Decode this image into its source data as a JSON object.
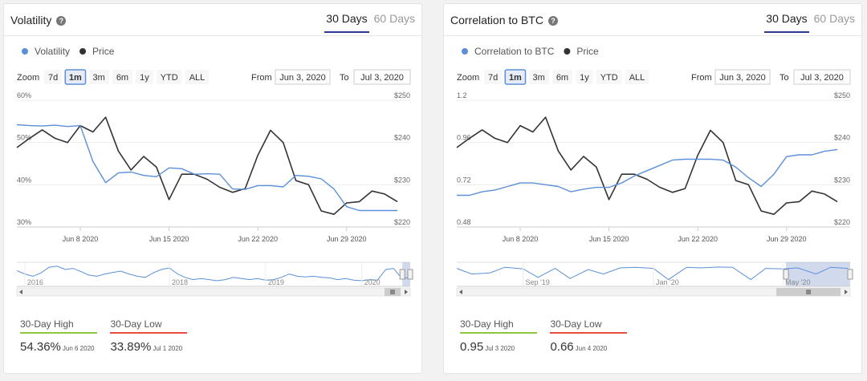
{
  "tab_labels": [
    "30 Days",
    "60 Days"
  ],
  "zoom_label": "Zoom",
  "zoom_buttons": [
    "7d",
    "1m",
    "3m",
    "6m",
    "1y",
    "YTD",
    "ALL"
  ],
  "from_label": "From",
  "to_label": "To",
  "colors": {
    "primary": "#5b8fd9",
    "secondary": "#333333",
    "high": "#8dc63f",
    "low": "#e74c3c",
    "tab_active": "#2e3a8c"
  },
  "icons": [
    "help-icon",
    "scroll-left-icon",
    "scroll-right-icon",
    "scrollbar-grip-icon",
    "navigator-handle-icon"
  ],
  "cards": [
    {
      "title": "Volatility",
      "active_tab": 0,
      "from_value": "Jun 3, 2020",
      "to_value": "Jul 3, 2020",
      "active_zoom": 1,
      "stats": {
        "high_label": "30-Day High",
        "high_value": "54.36%",
        "high_date": "Jun 6 2020",
        "low_label": "30-Day Low",
        "low_value": "33.89%",
        "low_date": "Jul 1 2020"
      },
      "chart_data": {
        "type": "line",
        "legend": "top-left",
        "xlim": [
          "2020-06-03",
          "2020-07-03"
        ],
        "x_ticks": [
          "Jun 8 2020",
          "Jun 15 2020",
          "Jun 22 2020",
          "Jun 29 2020"
        ],
        "x_tick_dates": [
          "2020-06-08",
          "2020-06-15",
          "2020-06-22",
          "2020-06-29"
        ],
        "y_left": {
          "ticks": [
            "60%",
            "50%",
            "40%",
            "30%"
          ],
          "values": [
            60,
            50,
            40,
            30
          ],
          "range": [
            30,
            60
          ]
        },
        "y_right": {
          "ticks": [
            "$250",
            "$240",
            "$230",
            "$220"
          ],
          "values": [
            250,
            240,
            230,
            220
          ],
          "range": [
            220,
            250
          ]
        },
        "series": [
          {
            "name": "Volatility",
            "axis": "left",
            "x": [
              "2020-06-03",
              "2020-06-04",
              "2020-06-05",
              "2020-06-06",
              "2020-06-07",
              "2020-06-08",
              "2020-06-09",
              "2020-06-10",
              "2020-06-11",
              "2020-06-12",
              "2020-06-13",
              "2020-06-14",
              "2020-06-15",
              "2020-06-16",
              "2020-06-17",
              "2020-06-18",
              "2020-06-19",
              "2020-06-20",
              "2020-06-21",
              "2020-06-22",
              "2020-06-23",
              "2020-06-24",
              "2020-06-25",
              "2020-06-26",
              "2020-06-27",
              "2020-06-28",
              "2020-06-29",
              "2020-06-30",
              "2020-07-01",
              "2020-07-02",
              "2020-07-03"
            ],
            "values": [
              54.2,
              54.0,
              53.9,
              54.1,
              53.8,
              54.0,
              45.5,
              40.5,
              42.8,
              43.0,
              42.2,
              41.9,
              44.0,
              43.8,
              42.5,
              42.6,
              42.5,
              39.0,
              38.9,
              39.8,
              39.8,
              39.5,
              42.2,
              42.0,
              41.4,
              39.0,
              34.8,
              33.9,
              33.9,
              33.9,
              33.9
            ]
          },
          {
            "name": "Price",
            "axis": "right",
            "x": [
              "2020-06-03",
              "2020-06-04",
              "2020-06-05",
              "2020-06-06",
              "2020-06-07",
              "2020-06-08",
              "2020-06-09",
              "2020-06-10",
              "2020-06-11",
              "2020-06-12",
              "2020-06-13",
              "2020-06-14",
              "2020-06-15",
              "2020-06-16",
              "2020-06-17",
              "2020-06-18",
              "2020-06-19",
              "2020-06-20",
              "2020-06-21",
              "2020-06-22",
              "2020-06-23",
              "2020-06-24",
              "2020-06-25",
              "2020-06-26",
              "2020-06-27",
              "2020-06-28",
              "2020-06-29",
              "2020-06-30",
              "2020-07-01",
              "2020-07-02",
              "2020-07-03"
            ],
            "values": [
              238.8,
              241.0,
              243.0,
              241.0,
              240.0,
              244.0,
              242.5,
              246.0,
              238.0,
              233.5,
              236.7,
              234.2,
              226.5,
              232.5,
              232.5,
              231.3,
              229.4,
              228.2,
              229.1,
              237.0,
              242.9,
              240.0,
              231.0,
              230.0,
              223.8,
              223.0,
              225.7,
              226.0,
              228.5,
              227.8,
              226.0
            ]
          }
        ]
      },
      "navigator": {
        "labels": [
          "2016",
          "2018",
          "2019",
          "2020"
        ],
        "label_dates": [
          "2016-07-01",
          "2018-01-01",
          "2019-01-01",
          "2020-01-01"
        ],
        "xlim": [
          "2016-06-01",
          "2020-07-03"
        ],
        "selected": [
          "2020-06-03",
          "2020-07-03"
        ],
        "x": [
          "2016-06-01",
          "2016-07-01",
          "2016-08-01",
          "2016-09-01",
          "2016-10-01",
          "2016-11-01",
          "2016-12-01",
          "2017-01-01",
          "2017-02-01",
          "2017-03-01",
          "2017-04-01",
          "2017-05-01",
          "2017-06-01",
          "2017-07-01",
          "2017-08-01",
          "2017-09-01",
          "2017-10-01",
          "2017-11-01",
          "2017-12-01",
          "2018-01-01",
          "2018-02-01",
          "2018-03-01",
          "2018-04-01",
          "2018-05-01",
          "2018-06-01",
          "2018-07-01",
          "2018-08-01",
          "2018-09-01",
          "2018-10-01",
          "2018-11-01",
          "2018-12-01",
          "2019-01-01",
          "2019-02-01",
          "2019-03-01",
          "2019-04-01",
          "2019-05-01",
          "2019-06-01",
          "2019-07-01",
          "2019-08-01",
          "2019-09-01",
          "2019-10-01",
          "2019-11-01",
          "2019-12-01",
          "2020-01-01",
          "2020-02-01",
          "2020-03-01",
          "2020-04-01",
          "2020-05-01",
          "2020-06-01",
          "2020-07-01"
        ],
        "values": [
          70,
          55,
          45,
          60,
          85,
          90,
          75,
          80,
          65,
          50,
          45,
          55,
          62,
          68,
          55,
          45,
          40,
          60,
          75,
          82,
          55,
          40,
          30,
          35,
          30,
          25,
          30,
          40,
          35,
          30,
          35,
          28,
          30,
          40,
          55,
          45,
          42,
          45,
          40,
          38,
          30,
          35,
          28,
          25,
          30,
          28,
          75,
          80,
          35,
          40
        ]
      }
    },
    {
      "title": "Correlation to BTC",
      "active_tab": 0,
      "from_value": "Jun 3, 2020",
      "to_value": "Jul 3, 2020",
      "active_zoom": 1,
      "stats": {
        "high_label": "30-Day High",
        "high_value": "0.95",
        "high_date": "Jul 3 2020",
        "low_label": "30-Day Low",
        "low_value": "0.66",
        "low_date": "Jun 4 2020"
      },
      "chart_data": {
        "type": "line",
        "legend": "top-left",
        "xlim": [
          "2020-06-03",
          "2020-07-03"
        ],
        "x_ticks": [
          "Jun 8 2020",
          "Jun 15 2020",
          "Jun 22 2020",
          "Jun 29 2020"
        ],
        "x_tick_dates": [
          "2020-06-08",
          "2020-06-15",
          "2020-06-22",
          "2020-06-29"
        ],
        "y_left": {
          "ticks": [
            "1.2",
            "0.96",
            "0.72",
            "0.48"
          ],
          "values": [
            1.2,
            0.96,
            0.72,
            0.48
          ],
          "range": [
            0.48,
            1.2
          ]
        },
        "y_right": {
          "ticks": [
            "$250",
            "$240",
            "$230",
            "$220"
          ],
          "values": [
            250,
            240,
            230,
            220
          ],
          "range": [
            220,
            250
          ]
        },
        "series": [
          {
            "name": "Correlation to BTC",
            "axis": "left",
            "x": [
              "2020-06-03",
              "2020-06-04",
              "2020-06-05",
              "2020-06-06",
              "2020-06-07",
              "2020-06-08",
              "2020-06-09",
              "2020-06-10",
              "2020-06-11",
              "2020-06-12",
              "2020-06-13",
              "2020-06-14",
              "2020-06-15",
              "2020-06-16",
              "2020-06-17",
              "2020-06-18",
              "2020-06-19",
              "2020-06-20",
              "2020-06-21",
              "2020-06-22",
              "2020-06-23",
              "2020-06-24",
              "2020-06-25",
              "2020-06-26",
              "2020-06-27",
              "2020-06-28",
              "2020-06-29",
              "2020-06-30",
              "2020-07-01",
              "2020-07-02",
              "2020-07-03"
            ],
            "values": [
              0.66,
              0.66,
              0.68,
              0.69,
              0.71,
              0.73,
              0.73,
              0.72,
              0.71,
              0.68,
              0.695,
              0.705,
              0.705,
              0.73,
              0.77,
              0.8,
              0.83,
              0.86,
              0.865,
              0.865,
              0.865,
              0.86,
              0.82,
              0.76,
              0.71,
              0.78,
              0.88,
              0.89,
              0.89,
              0.91,
              0.92
            ]
          },
          {
            "name": "Price",
            "axis": "right",
            "x": [
              "2020-06-03",
              "2020-06-04",
              "2020-06-05",
              "2020-06-06",
              "2020-06-07",
              "2020-06-08",
              "2020-06-09",
              "2020-06-10",
              "2020-06-11",
              "2020-06-12",
              "2020-06-13",
              "2020-06-14",
              "2020-06-15",
              "2020-06-16",
              "2020-06-17",
              "2020-06-18",
              "2020-06-19",
              "2020-06-20",
              "2020-06-21",
              "2020-06-22",
              "2020-06-23",
              "2020-06-24",
              "2020-06-25",
              "2020-06-26",
              "2020-06-27",
              "2020-06-28",
              "2020-06-29",
              "2020-06-30",
              "2020-07-01",
              "2020-07-02",
              "2020-07-03"
            ],
            "values": [
              238.8,
              241.0,
              243.0,
              241.0,
              240.0,
              244.0,
              242.5,
              246.0,
              238.0,
              233.5,
              236.7,
              234.2,
              226.5,
              232.5,
              232.5,
              231.3,
              229.4,
              228.2,
              229.1,
              237.0,
              242.9,
              240.0,
              231.0,
              230.0,
              223.8,
              223.0,
              225.7,
              226.0,
              228.5,
              227.8,
              226.0
            ]
          }
        ]
      },
      "navigator": {
        "labels": [
          "Sep '19",
          "Jan '20",
          "May '20"
        ],
        "label_dates": [
          "2019-09-01",
          "2020-01-01",
          "2020-05-01"
        ],
        "xlim": [
          "2019-07-01",
          "2020-07-03"
        ],
        "selected": [
          "2020-05-04",
          "2020-07-03"
        ],
        "x": [
          "2019-07-01",
          "2019-07-15",
          "2019-08-01",
          "2019-08-15",
          "2019-09-01",
          "2019-09-15",
          "2019-10-01",
          "2019-10-15",
          "2019-11-01",
          "2019-11-15",
          "2019-12-01",
          "2019-12-15",
          "2020-01-01",
          "2020-01-15",
          "2020-02-01",
          "2020-02-15",
          "2020-03-01",
          "2020-03-15",
          "2020-04-01",
          "2020-04-15",
          "2020-05-01",
          "2020-05-15",
          "2020-06-01",
          "2020-06-15",
          "2020-07-01"
        ],
        "values": [
          80,
          55,
          60,
          85,
          78,
          40,
          80,
          35,
          75,
          55,
          82,
          85,
          80,
          30,
          85,
          82,
          86,
          85,
          30,
          80,
          78,
          82,
          55,
          85,
          80
        ]
      }
    }
  ]
}
